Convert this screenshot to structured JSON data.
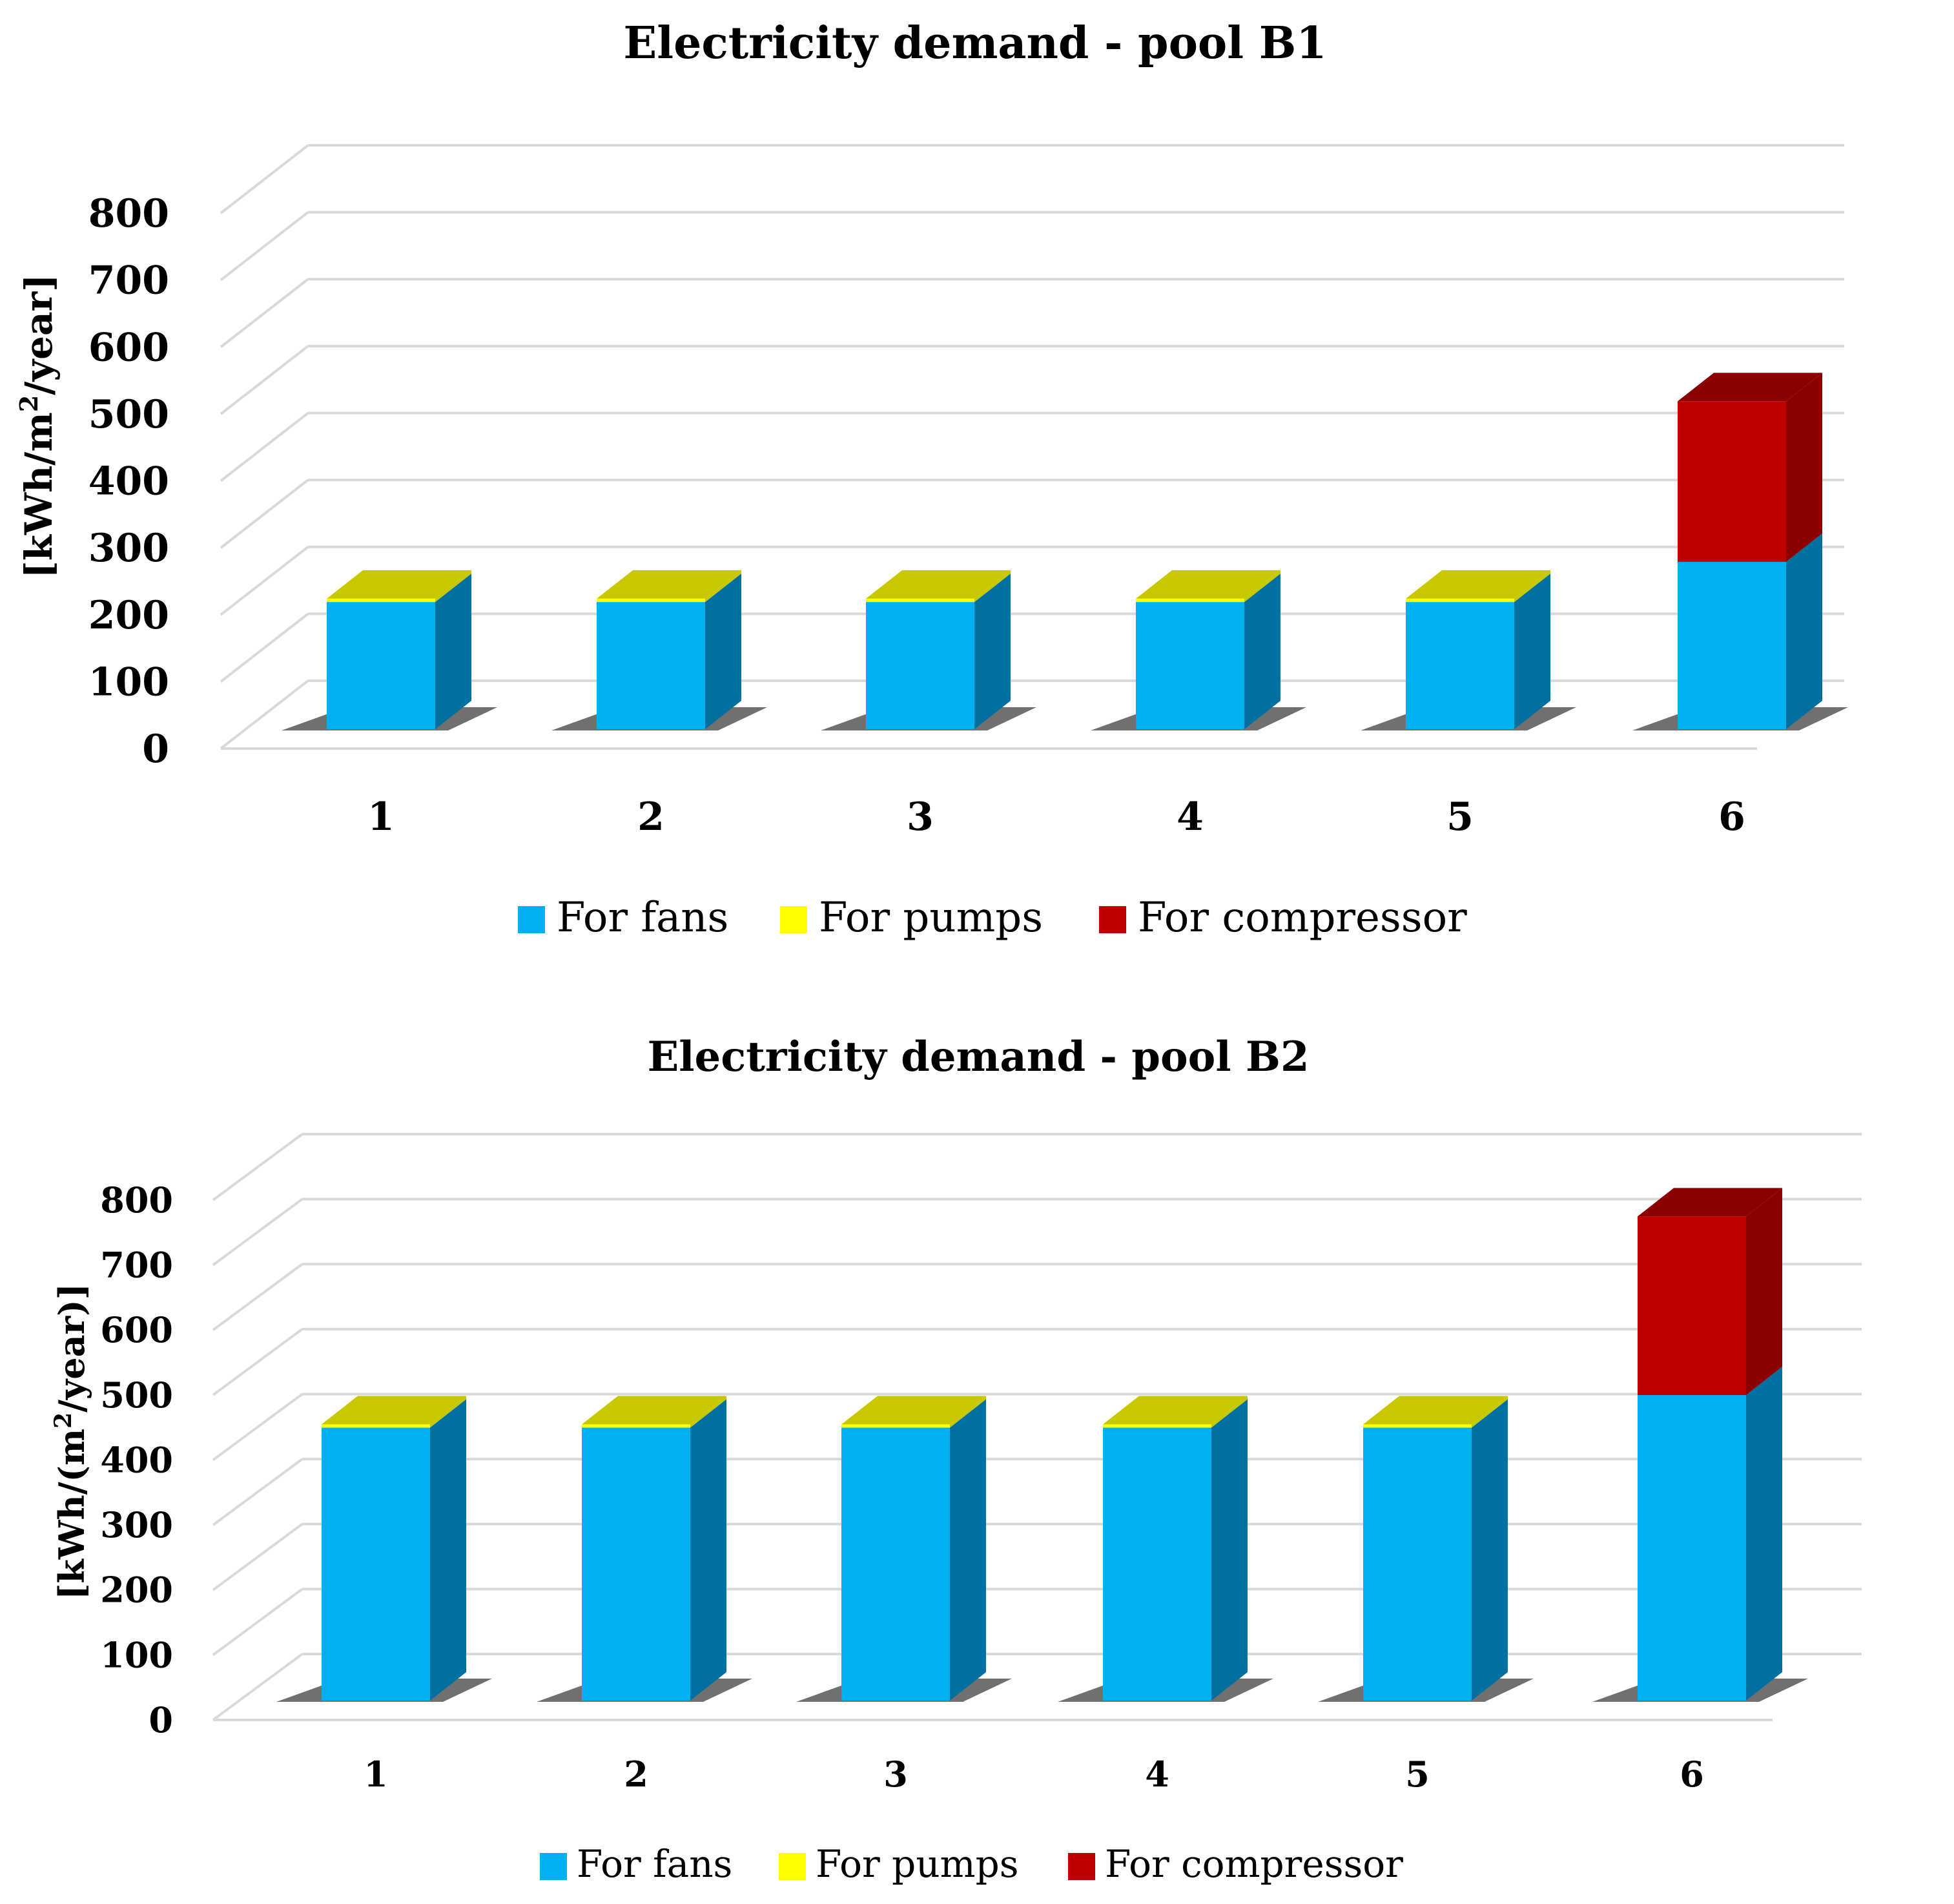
{
  "colors": {
    "fans": "#00B0F0",
    "fans_side": "#0070A0",
    "pumps": "#FFFF00",
    "pumps_top": "#C8C800",
    "compressor": "#C00000",
    "compressor_top": "#8B0000",
    "grid": "#D9D9D9",
    "shadow": "#404040"
  },
  "legend": [
    "For fans",
    "For pumps",
    "For compressor"
  ],
  "chart_data": [
    {
      "type": "bar",
      "stacked": true,
      "title": "Electricity demand - pool B1",
      "ylabel_parts": [
        "[kWh/m",
        "2",
        "/year]"
      ],
      "xlabel": "",
      "categories": [
        "1",
        "2",
        "3",
        "4",
        "5",
        "6"
      ],
      "ylim": [
        0,
        800
      ],
      "yticks": [
        "0",
        "100",
        "200",
        "300",
        "400",
        "500",
        "600",
        "700",
        "800"
      ],
      "series": [
        {
          "name": "For fans",
          "values": [
            190,
            190,
            190,
            190,
            190,
            250
          ]
        },
        {
          "name": "For pumps",
          "values": [
            5,
            5,
            5,
            5,
            5,
            0
          ]
        },
        {
          "name": "For compressor",
          "values": [
            0,
            0,
            0,
            0,
            0,
            240
          ]
        }
      ]
    },
    {
      "type": "bar",
      "stacked": true,
      "title": "Electricity demand - pool B2",
      "ylabel_parts": [
        "[kWh/(m",
        "2",
        "/year)]"
      ],
      "xlabel": "",
      "categories": [
        "1",
        "2",
        "3",
        "4",
        "5",
        "6"
      ],
      "ylim": [
        0,
        800
      ],
      "yticks": [
        "0",
        "100",
        "200",
        "300",
        "400",
        "500",
        "600",
        "700",
        "800"
      ],
      "series": [
        {
          "name": "For fans",
          "values": [
            420,
            420,
            420,
            420,
            420,
            470
          ]
        },
        {
          "name": "For pumps",
          "values": [
            5,
            5,
            5,
            5,
            5,
            0
          ]
        },
        {
          "name": "For compressor",
          "values": [
            0,
            0,
            0,
            0,
            0,
            275
          ]
        }
      ]
    }
  ]
}
